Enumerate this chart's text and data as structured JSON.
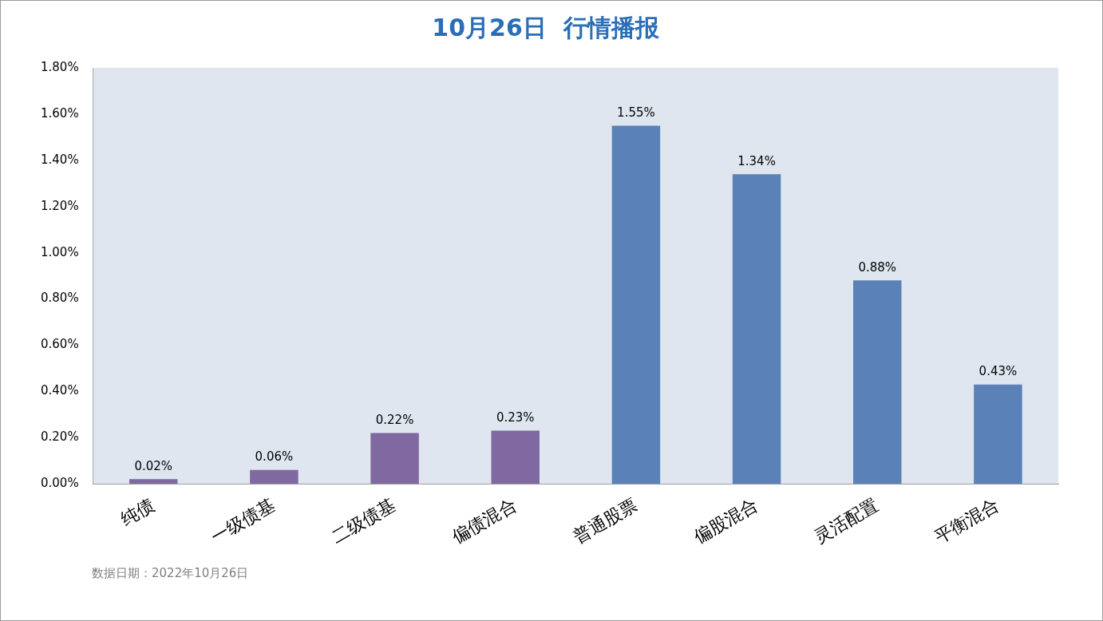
{
  "chart_data": {
    "type": "bar",
    "title": "10月26日  行情播报",
    "categories": [
      "纯债",
      "一级债基",
      "二级债基",
      "偏债混合",
      "普通股票",
      "偏股混合",
      "灵活配置",
      "平衡混合"
    ],
    "values": [
      0.02,
      0.06,
      0.22,
      0.23,
      1.55,
      1.34,
      0.88,
      0.43
    ],
    "value_labels": [
      "0.02%",
      "0.06%",
      "0.22%",
      "0.23%",
      "1.55%",
      "1.34%",
      "0.88%",
      "0.43%"
    ],
    "colors": [
      "#8068a0",
      "#8068a0",
      "#8068a0",
      "#8068a0",
      "#5a82b8",
      "#5a82b8",
      "#5a82b8",
      "#5a82b8"
    ],
    "ylim": [
      0,
      1.8
    ],
    "yticks": [
      {
        "value": 0,
        "label": "0.00%"
      },
      {
        "value": 0.2,
        "label": "0.20%"
      },
      {
        "value": 0.4,
        "label": "0.40%"
      },
      {
        "value": 0.6,
        "label": "0.60%"
      },
      {
        "value": 0.8,
        "label": "0.80%"
      },
      {
        "value": 1.0,
        "label": "1.00%"
      },
      {
        "value": 1.2,
        "label": "1.20%"
      },
      {
        "value": 1.4,
        "label": "1.40%"
      },
      {
        "value": 1.6,
        "label": "1.60%"
      },
      {
        "value": 1.8,
        "label": "1.80%"
      }
    ],
    "grid": false,
    "legend": false,
    "annotations": [
      "数据日期：2022年10月26日"
    ]
  }
}
